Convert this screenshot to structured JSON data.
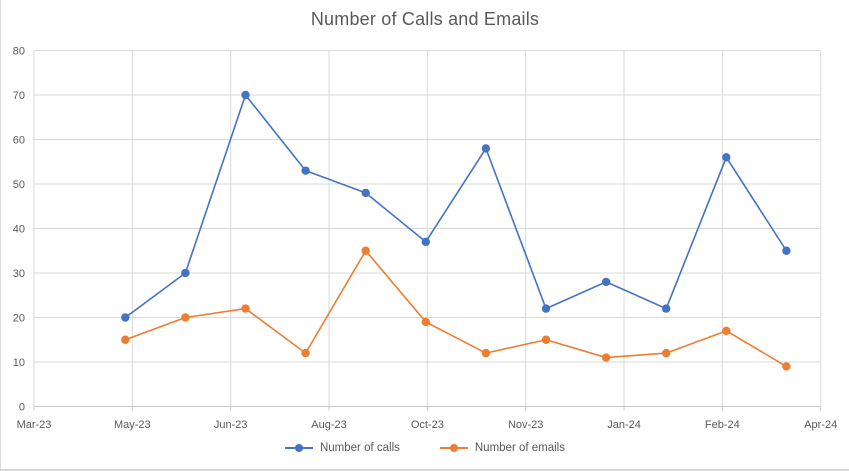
{
  "chart_data": {
    "type": "line",
    "title": "Number of Calls and Emails",
    "x_tick_labels": [
      "Mar-23",
      "May-23",
      "Jun-23",
      "Aug-23",
      "Oct-23",
      "Nov-23",
      "Jan-24",
      "Feb-24",
      "Apr-24"
    ],
    "y_ticks": [
      0,
      10,
      20,
      30,
      40,
      50,
      60,
      70,
      80
    ],
    "ylim": [
      0,
      80
    ],
    "grid": true,
    "legend_position": "bottom",
    "series": [
      {
        "name": "Number of calls",
        "color": "#4472C4",
        "values": [
          20,
          30,
          70,
          53,
          48,
          37,
          58,
          22,
          28,
          22,
          56,
          35
        ]
      },
      {
        "name": "Number of emails",
        "color": "#ED7D31",
        "values": [
          15,
          20,
          22,
          12,
          35,
          19,
          12,
          15,
          11,
          12,
          17,
          9
        ]
      }
    ]
  },
  "colors": {
    "gridline": "#d9d9d9",
    "axis_line": "#c6c6c6",
    "tick_text": "#595959",
    "title_text": "#595959"
  }
}
